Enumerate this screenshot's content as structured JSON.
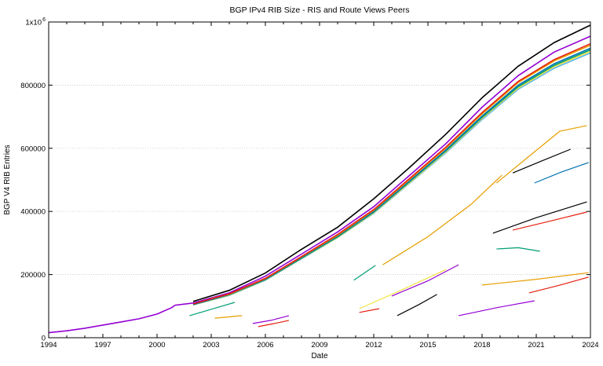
{
  "chart_data": {
    "type": "line",
    "title": "BGP IPv4 RIB Size - RIS and Route Views Peers",
    "xlabel": "Date",
    "ylabel": "BGP V4 RIB Entries",
    "xlim": [
      1994,
      2024
    ],
    "ylim": [
      0,
      1000000
    ],
    "x_ticks": [
      1994,
      1997,
      2000,
      2003,
      2006,
      2009,
      2012,
      2015,
      2018,
      2021,
      2024
    ],
    "y_ticks": [
      {
        "value": 0,
        "label": "0"
      },
      {
        "value": 200000,
        "label": "200000"
      },
      {
        "value": 400000,
        "label": "400000"
      },
      {
        "value": 600000,
        "label": "600000"
      },
      {
        "value": 800000,
        "label": "800000"
      },
      {
        "value": 1000000,
        "label": "1x10",
        "sup": "6"
      }
    ],
    "grid": "horizontal dotted",
    "legend": "none",
    "series": [
      {
        "color": "#9400d3",
        "points": [
          [
            1994,
            16000
          ],
          [
            1995,
            22000
          ],
          [
            1996,
            30000
          ],
          [
            1997,
            40000
          ],
          [
            1998,
            50000
          ],
          [
            1999,
            60000
          ],
          [
            2000,
            75000
          ],
          [
            2000.8,
            95000
          ],
          [
            2001,
            103000
          ],
          [
            2002,
            110000
          ],
          [
            2004,
            142000
          ],
          [
            2006,
            195000
          ],
          [
            2008,
            265000
          ],
          [
            2010,
            335000
          ],
          [
            2012,
            415000
          ],
          [
            2014,
            515000
          ],
          [
            2016,
            615000
          ],
          [
            2018,
            730000
          ],
          [
            2020,
            830000
          ],
          [
            2022,
            905000
          ],
          [
            2024,
            955000
          ]
        ]
      },
      {
        "color": "#56b4e9",
        "points": [
          [
            2002,
            104000
          ],
          [
            2004,
            134000
          ],
          [
            2006,
            182000
          ],
          [
            2008,
            250000
          ],
          [
            2010,
            317000
          ],
          [
            2012,
            394000
          ],
          [
            2014,
            490000
          ],
          [
            2016,
            586000
          ],
          [
            2018,
            691000
          ],
          [
            2020,
            787000
          ],
          [
            2022,
            854000
          ],
          [
            2024,
            902000
          ]
        ]
      },
      {
        "color": "#f0e442",
        "points": [
          [
            2002,
            104000
          ],
          [
            2004,
            135000
          ],
          [
            2006,
            183000
          ],
          [
            2008,
            251000
          ],
          [
            2010,
            318000
          ],
          [
            2012,
            396000
          ],
          [
            2014,
            492000
          ],
          [
            2016,
            589000
          ],
          [
            2018,
            695000
          ],
          [
            2020,
            791000
          ],
          [
            2022,
            859000
          ],
          [
            2024,
            907000
          ]
        ]
      },
      {
        "color": "#009e73",
        "points": [
          [
            2002,
            105000
          ],
          [
            2004,
            136000
          ],
          [
            2006,
            184000
          ],
          [
            2008,
            252000
          ],
          [
            2010,
            320000
          ],
          [
            2012,
            398000
          ],
          [
            2014,
            495000
          ],
          [
            2016,
            592000
          ],
          [
            2018,
            698000
          ],
          [
            2020,
            795000
          ],
          [
            2022,
            863000
          ],
          [
            2024,
            912000
          ]
        ]
      },
      {
        "color": "#0072b2",
        "points": [
          [
            2002,
            105000
          ],
          [
            2004,
            137000
          ],
          [
            2006,
            185000
          ],
          [
            2008,
            254000
          ],
          [
            2010,
            322000
          ],
          [
            2012,
            400000
          ],
          [
            2014,
            497000
          ],
          [
            2016,
            595000
          ],
          [
            2018,
            702000
          ],
          [
            2020,
            800000
          ],
          [
            2022,
            868000
          ],
          [
            2024,
            917000
          ]
        ]
      },
      {
        "color": "#e69f00",
        "points": [
          [
            2003,
            124000
          ],
          [
            2004,
            138000
          ],
          [
            2006,
            187000
          ],
          [
            2008,
            256000
          ],
          [
            2010,
            325000
          ],
          [
            2012,
            404000
          ],
          [
            2014,
            502000
          ],
          [
            2016,
            601000
          ],
          [
            2018,
            709000
          ],
          [
            2020,
            808000
          ],
          [
            2022,
            877000
          ],
          [
            2024,
            926000
          ]
        ]
      },
      {
        "color": "#e51e10",
        "points": [
          [
            2002,
            107000
          ],
          [
            2004,
            139000
          ],
          [
            2006,
            188000
          ],
          [
            2008,
            257000
          ],
          [
            2010,
            327000
          ],
          [
            2012,
            406000
          ],
          [
            2014,
            505000
          ],
          [
            2016,
            604000
          ],
          [
            2018,
            713000
          ],
          [
            2020,
            812000
          ],
          [
            2022,
            881000
          ],
          [
            2024,
            931000
          ]
        ]
      },
      {
        "color": "#000000",
        "points": [
          [
            2002,
            115000
          ],
          [
            2004,
            150000
          ],
          [
            2006,
            205000
          ],
          [
            2008,
            280000
          ],
          [
            2010,
            350000
          ],
          [
            2012,
            440000
          ],
          [
            2014,
            540000
          ],
          [
            2016,
            645000
          ],
          [
            2018,
            760000
          ],
          [
            2020,
            860000
          ],
          [
            2022,
            935000
          ],
          [
            2024,
            990000
          ]
        ]
      },
      {
        "color": "#e69f00",
        "points": [
          [
            2012.5,
            231000
          ],
          [
            2015,
            320000
          ],
          [
            2017.4,
            423000
          ],
          [
            2019.1,
            515000
          ]
        ]
      },
      {
        "color": "#e69f00",
        "points": [
          [
            2018.8,
            490000
          ],
          [
            2020.5,
            570000
          ],
          [
            2022.3,
            654000
          ],
          [
            2023.8,
            672000
          ]
        ]
      },
      {
        "color": "#000000",
        "points": [
          [
            2019.7,
            522000
          ],
          [
            2021.3,
            560000
          ],
          [
            2022.9,
            597000
          ]
        ]
      },
      {
        "color": "#0072b2",
        "points": [
          [
            2020.9,
            490000
          ],
          [
            2022.4,
            525000
          ],
          [
            2023.9,
            555000
          ]
        ]
      },
      {
        "color": "#000000",
        "points": [
          [
            2018.6,
            331000
          ],
          [
            2021,
            380000
          ],
          [
            2023.8,
            430000
          ]
        ]
      },
      {
        "color": "#e51e10",
        "points": [
          [
            2019.7,
            341000
          ],
          [
            2021.8,
            370000
          ],
          [
            2023.8,
            398000
          ]
        ]
      },
      {
        "color": "#009e73",
        "points": [
          [
            2018.8,
            281000
          ],
          [
            2020,
            285000
          ],
          [
            2021.2,
            274000
          ]
        ]
      },
      {
        "color": "#9400d3",
        "points": [
          [
            2013,
            132000
          ],
          [
            2015,
            180000
          ],
          [
            2016.7,
            231000
          ]
        ]
      },
      {
        "color": "#f0e442",
        "points": [
          [
            2011.2,
            92000
          ],
          [
            2013.5,
            150000
          ],
          [
            2016,
            216000
          ]
        ]
      },
      {
        "color": "#e51e10",
        "points": [
          [
            2011.2,
            80000
          ],
          [
            2012.3,
            92000
          ]
        ]
      },
      {
        "color": "#000000",
        "points": [
          [
            2013.3,
            70000
          ],
          [
            2014.5,
            105000
          ],
          [
            2015.5,
            137000
          ]
        ]
      },
      {
        "color": "#9400d3",
        "points": [
          [
            2016.7,
            70000
          ],
          [
            2018.8,
            95000
          ],
          [
            2020.9,
            117000
          ]
        ]
      },
      {
        "color": "#e69f00",
        "points": [
          [
            2018,
            167000
          ],
          [
            2021,
            185000
          ],
          [
            2023.9,
            206000
          ]
        ]
      },
      {
        "color": "#e51e10",
        "points": [
          [
            2020.6,
            142000
          ],
          [
            2022.2,
            165000
          ],
          [
            2023.9,
            192000
          ]
        ]
      },
      {
        "color": "#009e73",
        "points": [
          [
            2010.9,
            182000
          ],
          [
            2012.1,
            229000
          ]
        ]
      },
      {
        "color": "#009e73",
        "points": [
          [
            2001.8,
            70000
          ],
          [
            2003,
            90000
          ],
          [
            2004.3,
            112000
          ]
        ]
      },
      {
        "color": "#e69f00",
        "points": [
          [
            2003.2,
            62000
          ],
          [
            2004.7,
            70000
          ]
        ]
      },
      {
        "color": "#9400d3",
        "points": [
          [
            2005.3,
            45000
          ],
          [
            2006.3,
            55000
          ],
          [
            2007.3,
            70000
          ]
        ]
      },
      {
        "color": "#e51e10",
        "points": [
          [
            2005.6,
            35000
          ],
          [
            2006.5,
            45000
          ],
          [
            2007.3,
            55000
          ]
        ]
      }
    ]
  }
}
